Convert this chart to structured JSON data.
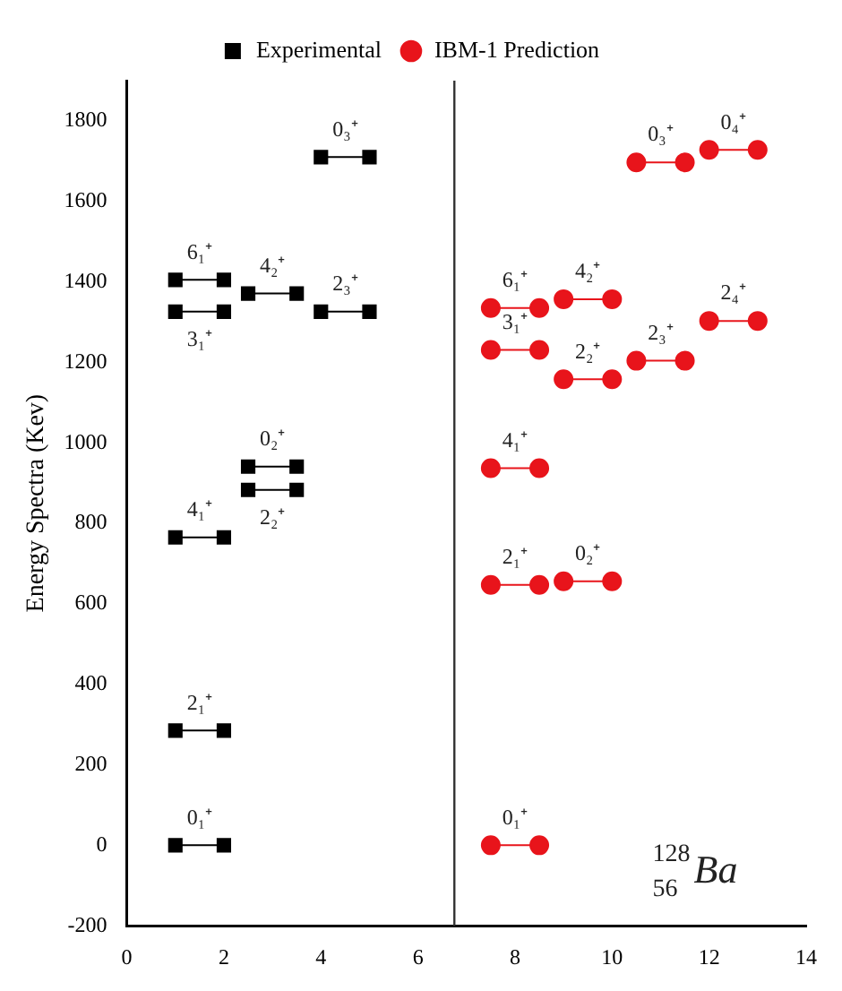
{
  "chart_data": {
    "type": "line",
    "ylabel": "Energy Spectra (Kev)",
    "legend": "top",
    "grid": false,
    "xlim": [
      0,
      14
    ],
    "xticks": [
      0,
      2,
      4,
      6,
      8,
      10,
      12,
      14
    ],
    "ylim": [
      -200,
      1900
    ],
    "yticks": [
      -200,
      0,
      200,
      400,
      600,
      800,
      1000,
      1200,
      1400,
      1600,
      1800
    ],
    "series": [
      {
        "name": "Experimental",
        "color": "#000000",
        "marker": "square",
        "x": [
          1,
          2
        ],
        "values": [
          0,
          0
        ]
      },
      {
        "color": "#000000",
        "marker": "square",
        "x": [
          1,
          2
        ],
        "values": [
          285,
          285
        ]
      },
      {
        "color": "#000000",
        "marker": "square",
        "x": [
          1,
          2
        ],
        "values": [
          765,
          765
        ]
      },
      {
        "color": "#000000",
        "marker": "square",
        "x": [
          2.5,
          3.5
        ],
        "values": [
          883,
          883
        ]
      },
      {
        "color": "#000000",
        "marker": "square",
        "x": [
          2.5,
          3.5
        ],
        "values": [
          941,
          941
        ]
      },
      {
        "color": "#000000",
        "marker": "square",
        "x": [
          1,
          2
        ],
        "values": [
          1326,
          1326
        ]
      },
      {
        "color": "#000000",
        "marker": "square",
        "x": [
          1,
          2
        ],
        "values": [
          1405,
          1405
        ]
      },
      {
        "color": "#000000",
        "marker": "square",
        "x": [
          2.5,
          3.5
        ],
        "values": [
          1371,
          1371
        ]
      },
      {
        "color": "#000000",
        "marker": "square",
        "x": [
          4,
          5
        ],
        "values": [
          1326,
          1326
        ]
      },
      {
        "color": "#000000",
        "marker": "square",
        "x": [
          4,
          5
        ],
        "values": [
          1710,
          1710
        ]
      },
      {
        "name": "IBM-1 Prediction",
        "color": "#e8141b",
        "marker": "circle",
        "x": [
          7.5,
          8.5
        ],
        "values": [
          0,
          0
        ]
      },
      {
        "color": "#e8141b",
        "marker": "circle",
        "x": [
          7.5,
          8.5
        ],
        "values": [
          647,
          647
        ]
      },
      {
        "color": "#e8141b",
        "marker": "circle",
        "x": [
          9,
          10
        ],
        "values": [
          656,
          656
        ]
      },
      {
        "color": "#e8141b",
        "marker": "circle",
        "x": [
          7.5,
          8.5
        ],
        "values": [
          937,
          937
        ]
      },
      {
        "color": "#e8141b",
        "marker": "circle",
        "x": [
          7.5,
          8.5
        ],
        "values": [
          1231,
          1231
        ]
      },
      {
        "color": "#e8141b",
        "marker": "circle",
        "x": [
          7.5,
          8.5
        ],
        "values": [
          1335,
          1335
        ]
      },
      {
        "color": "#e8141b",
        "marker": "circle",
        "x": [
          9,
          10
        ],
        "values": [
          1357,
          1357
        ]
      },
      {
        "color": "#e8141b",
        "marker": "circle",
        "x": [
          9,
          10
        ],
        "values": [
          1158,
          1158
        ]
      },
      {
        "color": "#e8141b",
        "marker": "circle",
        "x": [
          10.5,
          11.5
        ],
        "values": [
          1204,
          1204
        ]
      },
      {
        "color": "#e8141b",
        "marker": "circle",
        "x": [
          12,
          13
        ],
        "values": [
          1303,
          1303
        ]
      },
      {
        "color": "#e8141b",
        "marker": "circle",
        "x": [
          10.5,
          11.5
        ],
        "values": [
          1697,
          1697
        ]
      },
      {
        "color": "#e8141b",
        "marker": "circle",
        "x": [
          12,
          13
        ],
        "values": [
          1728,
          1728
        ]
      }
    ],
    "ref_lines": [
      {
        "axis": "x",
        "value": 6.75,
        "color": "#333333"
      }
    ],
    "annotations": [
      {
        "text": "0₁⁺",
        "x": 1.5,
        "y": 0
      },
      {
        "text": "2₁⁺",
        "x": 1.5,
        "y": 285
      },
      {
        "text": "4₁⁺",
        "x": 1.5,
        "y": 765
      },
      {
        "text": "2₂⁺",
        "x": 3,
        "y": 883
      },
      {
        "text": "0₂⁺",
        "x": 3,
        "y": 941
      },
      {
        "text": "3₁⁺",
        "x": 1.5,
        "y": 1326
      },
      {
        "text": "6₁⁺",
        "x": 1.5,
        "y": 1405
      },
      {
        "text": "4₂⁺",
        "x": 3,
        "y": 1371
      },
      {
        "text": "2₃⁺",
        "x": 4.5,
        "y": 1326
      },
      {
        "text": "0₃⁺",
        "x": 4.5,
        "y": 1710
      },
      {
        "text": "0₁⁺",
        "x": 8,
        "y": 0
      },
      {
        "text": "2₁⁺",
        "x": 8,
        "y": 647
      },
      {
        "text": "0₂⁺",
        "x": 9.5,
        "y": 656
      },
      {
        "text": "4₁⁺",
        "x": 8,
        "y": 937
      },
      {
        "text": "3₁⁺",
        "x": 8,
        "y": 1231
      },
      {
        "text": "6₁⁺",
        "x": 8,
        "y": 1335
      },
      {
        "text": "4₂⁺",
        "x": 9.5,
        "y": 1357
      },
      {
        "text": "2₂⁺",
        "x": 9.5,
        "y": 1158
      },
      {
        "text": "2₃⁺",
        "x": 11,
        "y": 1204
      },
      {
        "text": "2₄⁺",
        "x": 12.5,
        "y": 1303
      },
      {
        "text": "0₃⁺",
        "x": 11,
        "y": 1697
      },
      {
        "text": "0₄⁺",
        "x": 12.5,
        "y": 1728
      },
      "$^{128}$$_{56}$Ba"
    ]
  }
}
